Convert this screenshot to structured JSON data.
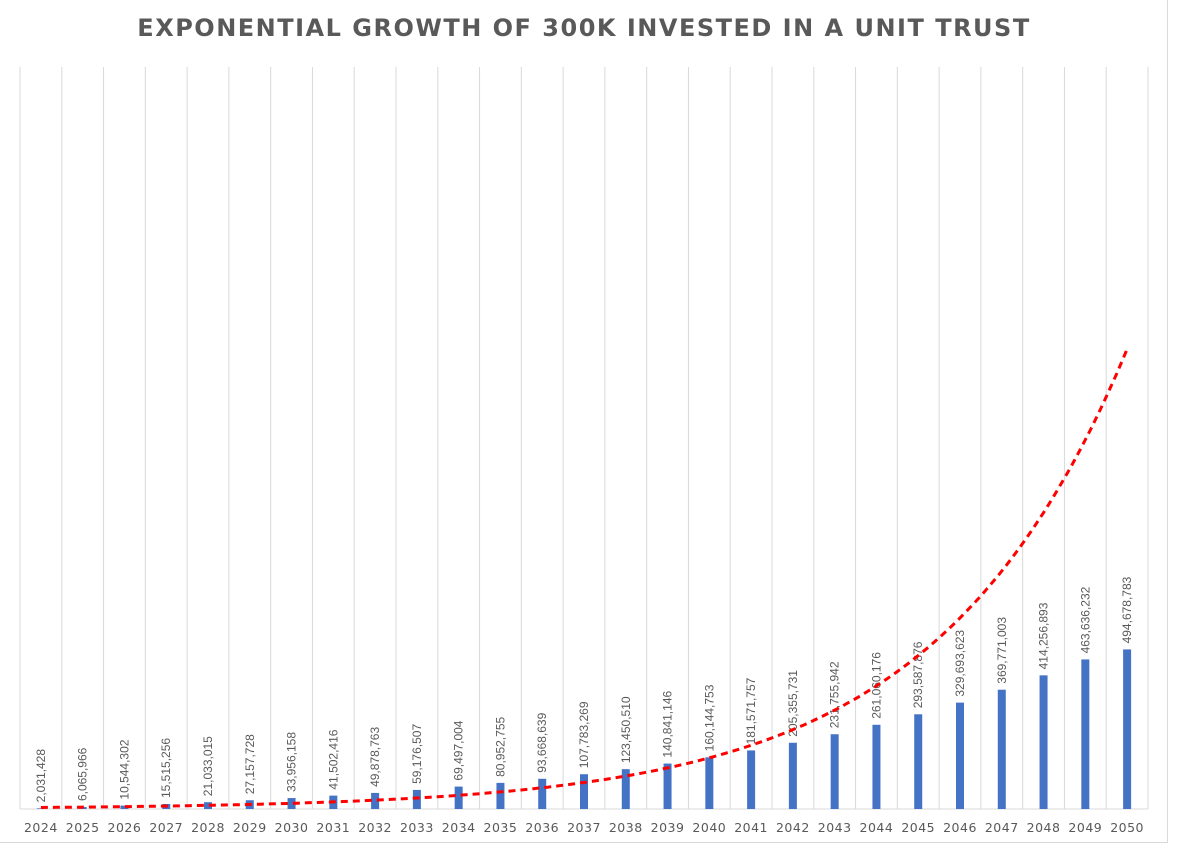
{
  "chart_data": {
    "type": "bar",
    "title": "EXPONENTIAL GROWTH OF 300K INVESTED IN A UNIT TRUST",
    "categories": [
      "2024",
      "2025",
      "2026",
      "2027",
      "2028",
      "2029",
      "2030",
      "2031",
      "2032",
      "2033",
      "2034",
      "2035",
      "2036",
      "2037",
      "2038",
      "2039",
      "2040",
      "2041",
      "2042",
      "2043",
      "2044",
      "2045",
      "2046",
      "2047",
      "2048",
      "2049",
      "2050"
    ],
    "data_labels": [
      "2,031,428",
      "6,065,966",
      "10,544,302",
      "15,515,256",
      "21,033,015",
      "27,157,728",
      "33,956,158",
      "41,502,416",
      "49,878,763",
      "59,176,507",
      "69,497,004",
      "80,952,755",
      "93,668,639",
      "107,783,269",
      "123,450,510",
      "140,841,146",
      "160,144,753",
      "181,571,757",
      "205,355,731",
      "231,755,942",
      "261,060,176",
      "293,587,876",
      "329,693,623",
      "369,771,003",
      "414,256,893",
      "463,636,232",
      "494,678,783"
    ],
    "series": [
      {
        "values": [
          2031428,
          6065966,
          10544302,
          15515256,
          21033015,
          27157728,
          33956158,
          41502416,
          49878763,
          59176507,
          69497004,
          80952755,
          93668639,
          107783269,
          123450510,
          140841146,
          160144753,
          181571757,
          205355731,
          231755942,
          261060176,
          293587876,
          329693623,
          369771003,
          414256893,
          463636232,
          494678783
        ],
        "color": "#4472C4"
      }
    ],
    "trendline": {
      "type": "exponential",
      "style": "dashed",
      "color": "#FF0000",
      "values": [
        4725000,
        5885000,
        7330000,
        9130000,
        11370000,
        14160000,
        17640000,
        21970000,
        27370000,
        34090000,
        42460000,
        52890000,
        65880000,
        82060000,
        102200000,
        127300000,
        158600000,
        197500000,
        246000000,
        306500000,
        381700000,
        475500000,
        592300000,
        737700000,
        918900000,
        1144500000,
        1425600000
      ]
    },
    "ylim": [
      0,
      2300000000
    ],
    "y_axis_labels_shown": false,
    "grid": "vertical",
    "legend": "none",
    "xlabel": "",
    "ylabel": ""
  }
}
